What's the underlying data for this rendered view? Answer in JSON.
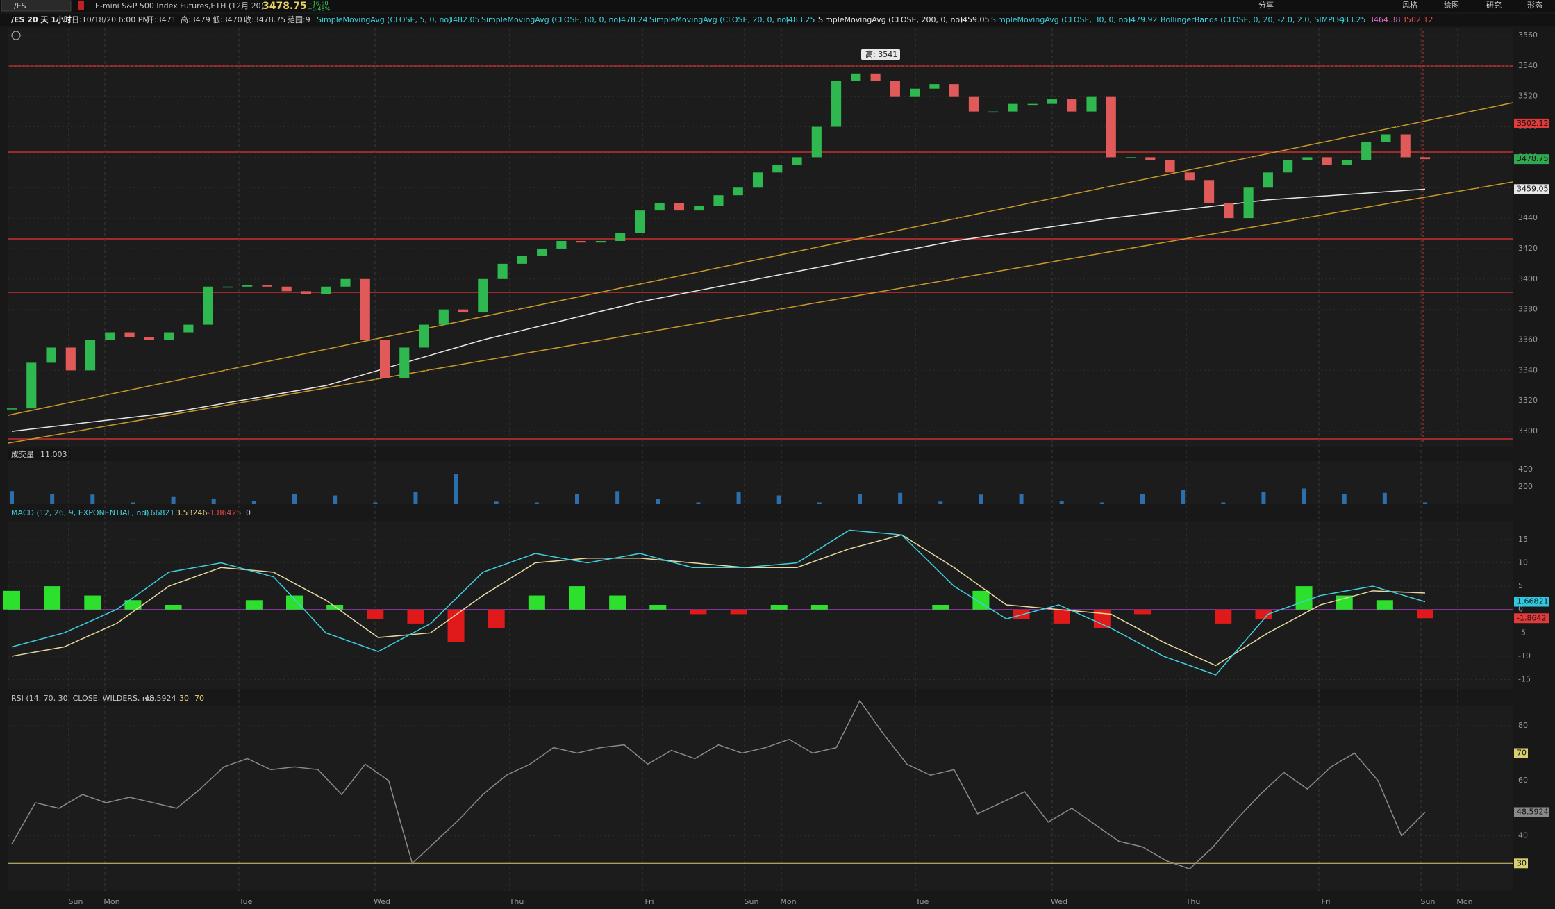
{
  "toolbar": {
    "symbol": "/ES",
    "description": "E-mini S&P 500 Index Futures,ETH (12月 20)",
    "last": "3478.75",
    "change": "+16.50",
    "change_pct": "+0.48%",
    "buttons": [
      "分享",
      "风格",
      "绘图",
      "研究",
      "形态"
    ]
  },
  "study_header": {
    "chart": "/ES 20 天 1小时",
    "date": "日:10/18/20 6:00 PM",
    "open": "开:3471",
    "high": "高:3479",
    "low": "低:3470",
    "close": "收:3478.75",
    "range": "范围:9",
    "studies": [
      {
        "name": "SimpleMovingAvg (CLOSE, 5, 0, no)",
        "value": "3482.05",
        "color": "#3fd0e0"
      },
      {
        "name": "SimpleMovingAvg (CLOSE, 60, 0, no)",
        "value": "3478.24",
        "color": "#3fd0e0"
      },
      {
        "name": "SimpleMovingAvg (CLOSE, 20, 0, no)",
        "value": "3483.25",
        "color": "#3fd0e0"
      },
      {
        "name": "SimpleMovingAvg (CLOSE, 200, 0, no)",
        "value": "3459.05",
        "color": "#e8e8e8"
      },
      {
        "name": "SimpleMovingAvg (CLOSE, 30, 0, no)",
        "value": "3479.92",
        "color": "#3fd0e0"
      },
      {
        "name": "BollingerBands (CLOSE, 0, 20, -2.0, 2.0, SIMPLE)",
        "value": "3483.25",
        "color": "#3fd0e0"
      }
    ],
    "bb_lower": "3464.38",
    "bb_upper": "3502.12"
  },
  "price": {
    "closes": [
      3315,
      3345,
      3355,
      3340,
      3360,
      3365,
      3362,
      3360,
      3365,
      3370,
      3395,
      3395,
      3396,
      3395,
      3392,
      3390,
      3395,
      3400,
      3360,
      3335,
      3355,
      3370,
      3380,
      3378,
      3400,
      3410,
      3415,
      3420,
      3425,
      3424,
      3425,
      3430,
      3445,
      3450,
      3445,
      3448,
      3455,
      3460,
      3470,
      3475,
      3480,
      3500,
      3530,
      3535,
      3530,
      3520,
      3525,
      3528,
      3520,
      3510,
      3510,
      3515,
      3515,
      3518,
      3510,
      3520,
      3480,
      3480,
      3478,
      3470,
      3465,
      3450,
      3440,
      3460,
      3470,
      3478,
      3480,
      3475,
      3478,
      3490,
      3495,
      3480,
      3478.75
    ],
    "sma200": [
      3300,
      3312,
      3330,
      3360,
      3385,
      3405,
      3425,
      3440,
      3452,
      3459.05
    ],
    "ylim": [
      3290,
      3565
    ],
    "yticks": [
      3300,
      3320,
      3340,
      3360,
      3380,
      3400,
      3420,
      3440,
      3460,
      3480,
      3500,
      3520,
      3540,
      3560
    ],
    "annotation": "高: 3541",
    "tags": [
      {
        "value": 3502.12,
        "color": "#e03a3a"
      },
      {
        "value": 3478.75,
        "color": "#2fa84f"
      },
      {
        "value": 3459.05,
        "color": "#e8e8e8"
      }
    ]
  },
  "volume": {
    "label": "成交量",
    "total": "11,003",
    "values": [
      150,
      120,
      110,
      20,
      90,
      60,
      40,
      120,
      100,
      20,
      140,
      350,
      30,
      20,
      120,
      150,
      60,
      20,
      140,
      100,
      20,
      120,
      130,
      30,
      110,
      120,
      40,
      20,
      120,
      160,
      20,
      140,
      180,
      120,
      130,
      20
    ],
    "yticks": [
      200,
      400
    ],
    "color": "#2b6fae"
  },
  "macd": {
    "label": "MACD (12, 26, 9, EXPONENTIAL, no)",
    "values": [
      "1.66821",
      "3.53246",
      "-1.86425",
      "0"
    ],
    "line": [
      -8,
      -5,
      0,
      8,
      10,
      7,
      -5,
      -9,
      -3,
      8,
      12,
      10,
      12,
      9,
      9,
      10,
      17,
      16,
      5,
      -2,
      1,
      -4,
      -10,
      -14,
      -1,
      3,
      5,
      1.66821
    ],
    "signal": [
      -10,
      -8,
      -3,
      5,
      9,
      8,
      2,
      -6,
      -5,
      3,
      10,
      11,
      11,
      10,
      9,
      9,
      13,
      16,
      9,
      1,
      0,
      -1,
      -7,
      -12,
      -5,
      1,
      4,
      3.53246
    ],
    "histogram": [
      4,
      5,
      3,
      2,
      1,
      0,
      2,
      3,
      1,
      -2,
      -3,
      -7,
      -4,
      3,
      5,
      3,
      1,
      -1,
      -1,
      1,
      1,
      0,
      0,
      1,
      4,
      -2,
      -3,
      -4,
      -1,
      0,
      -3,
      -2,
      5,
      3,
      2,
      -1.86425
    ],
    "ylim": [
      -17,
      19
    ],
    "yticks": [
      -15,
      -10,
      -5,
      0,
      5,
      10,
      15
    ],
    "tags": [
      {
        "value": 1.66821,
        "color": "#2fc8e0"
      },
      {
        "value": -1.8642,
        "color": "#e03a3a"
      }
    ]
  },
  "rsi": {
    "label": "RSI (14, 70, 30, CLOSE, WILDERS, no)",
    "value": "48.5924",
    "levels": [
      30,
      70
    ],
    "values": [
      37,
      52,
      50,
      55,
      52,
      54,
      52,
      50,
      57,
      65,
      68,
      64,
      65,
      64,
      55,
      66,
      60,
      30,
      38,
      46,
      55,
      62,
      66,
      72,
      70,
      72,
      73,
      66,
      71,
      68,
      73,
      70,
      72,
      75,
      70,
      72,
      89,
      77,
      66,
      62,
      64,
      48,
      52,
      56,
      45,
      50,
      44,
      38,
      36,
      31,
      28,
      36,
      46,
      55,
      63,
      57,
      65,
      70,
      60,
      40,
      48.5924
    ],
    "ylim": [
      20,
      87
    ],
    "yticks": [
      40,
      60,
      80
    ],
    "tag": 48.5924
  },
  "x_axis": [
    "Sun",
    "Mon",
    "Tue",
    "Wed",
    "Thu",
    "Fri",
    "Sun",
    "Mon",
    "Tue",
    "Wed",
    "Thu",
    "Fri",
    "Sun",
    "Mon"
  ]
}
